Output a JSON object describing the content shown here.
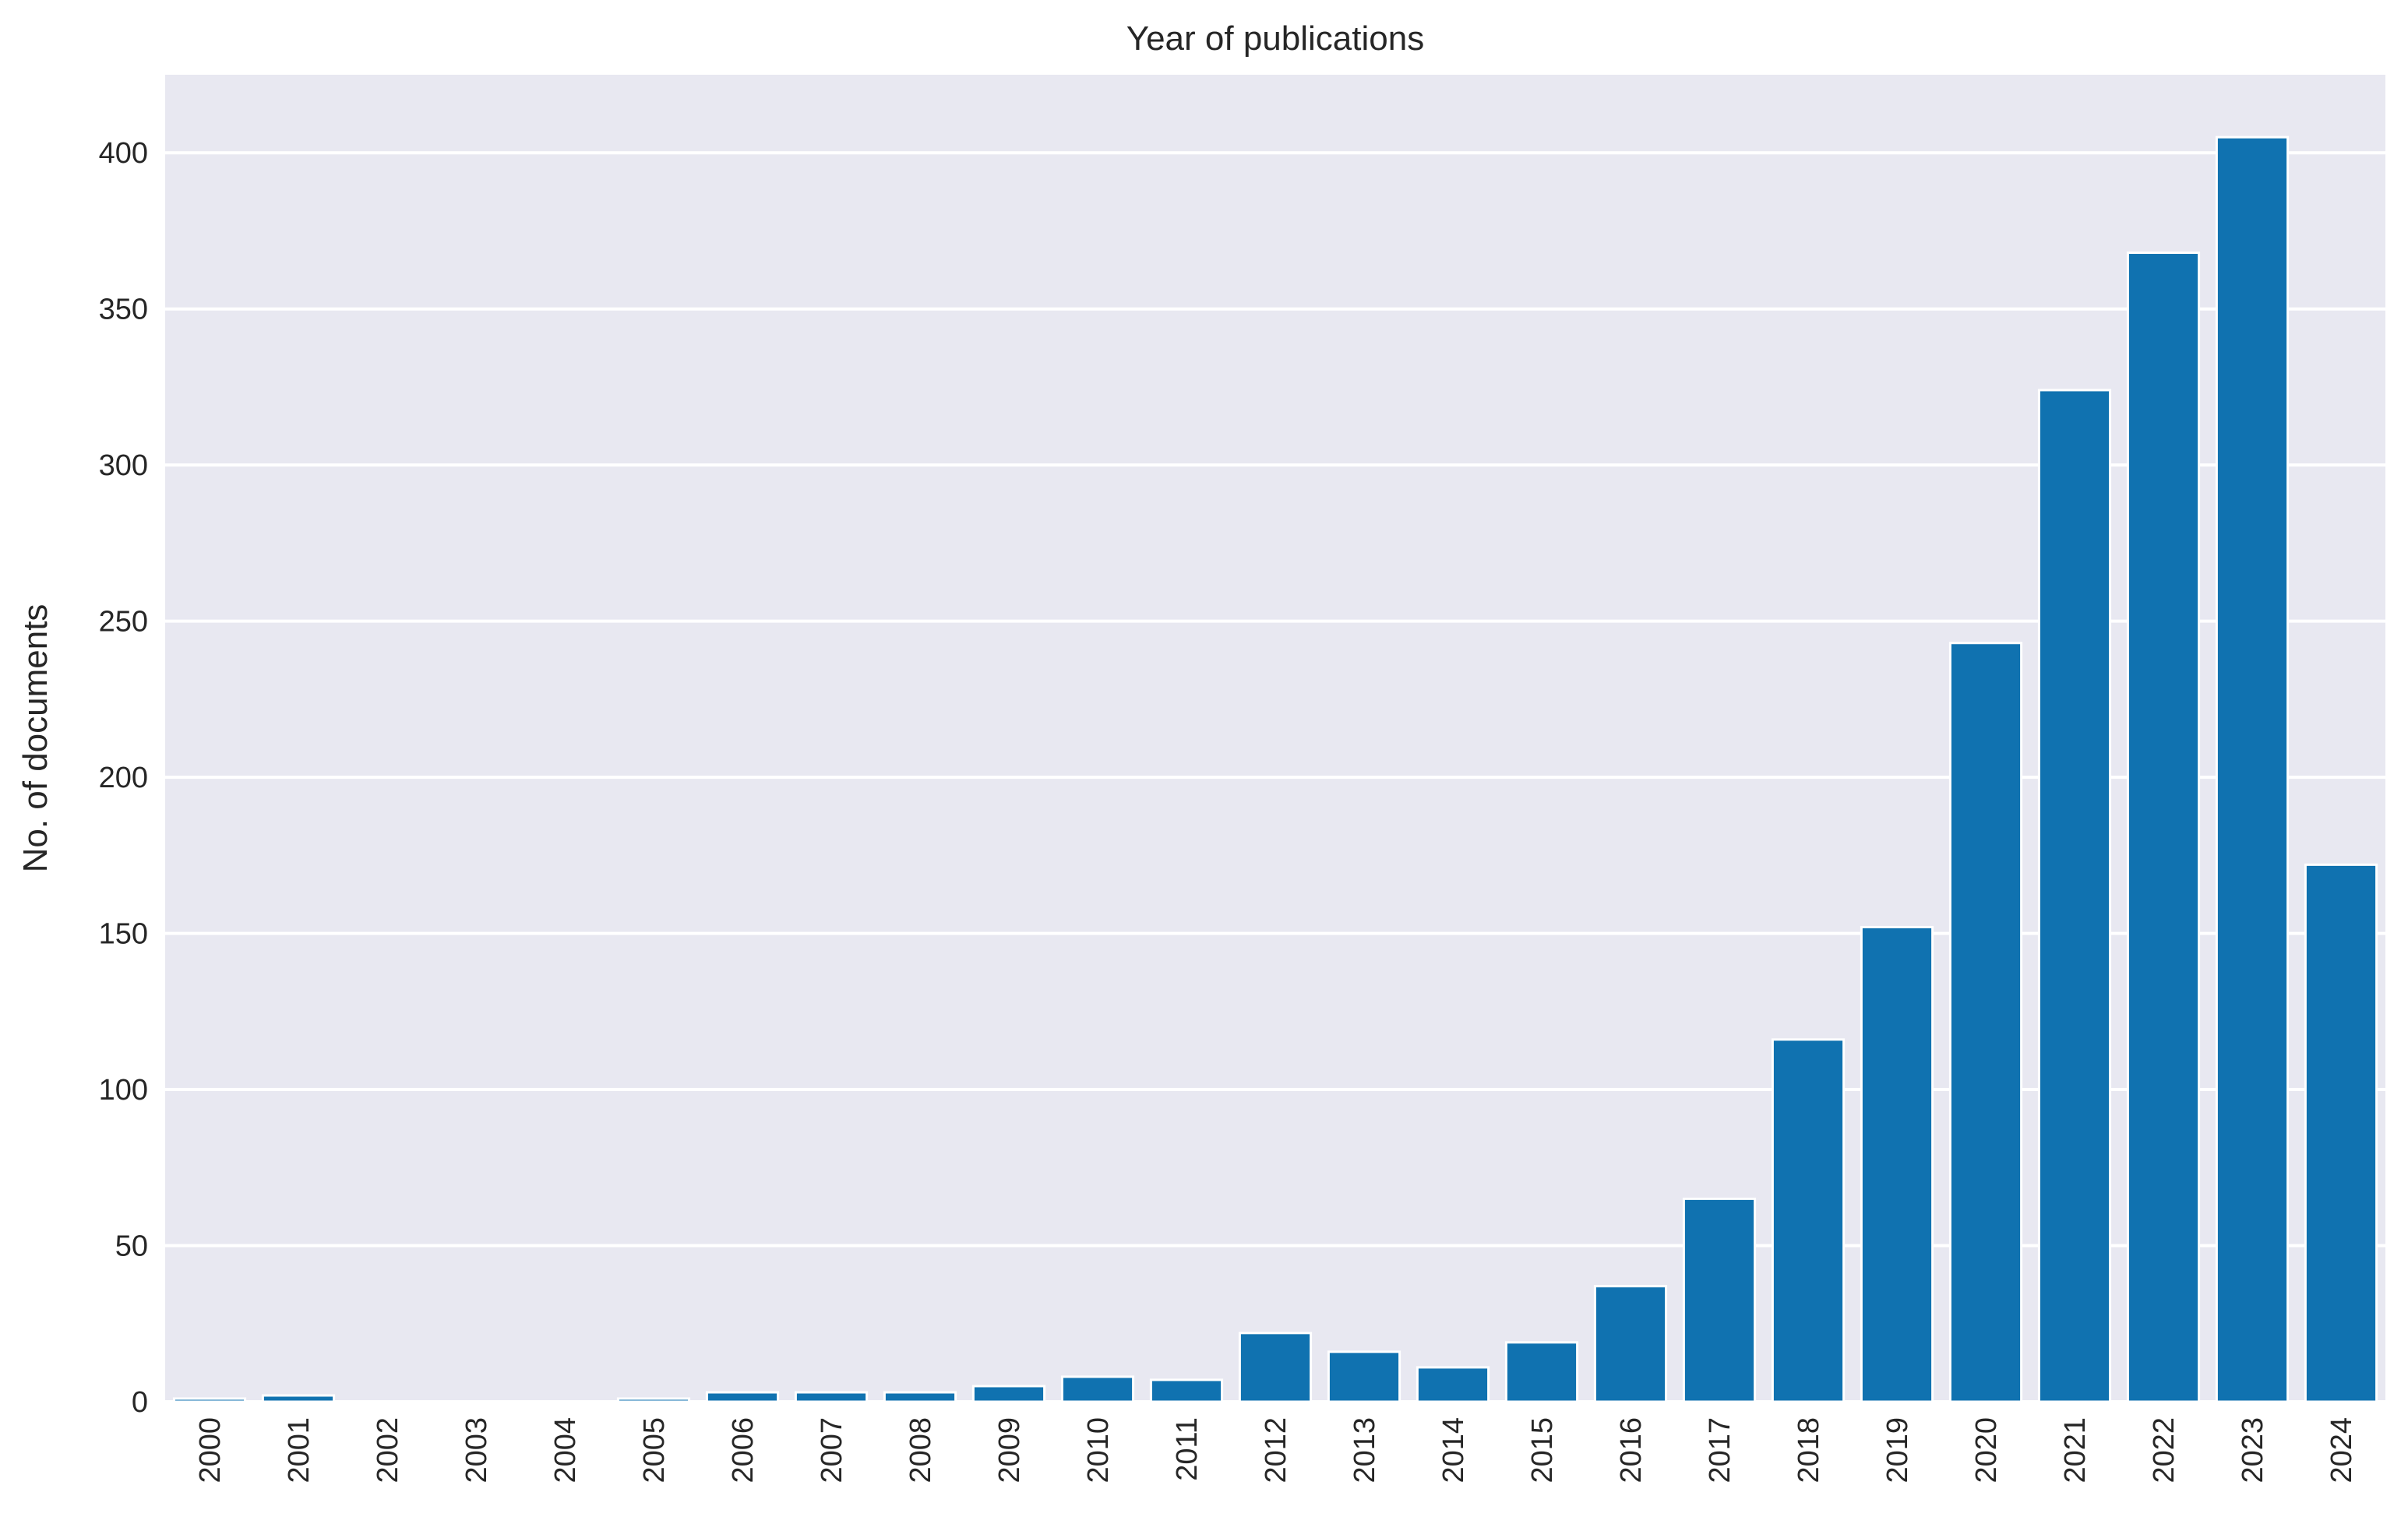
{
  "chart_data": {
    "type": "bar",
    "title": "Year of publications",
    "xlabel": "",
    "ylabel": "No. of documents",
    "ylim": [
      0,
      425
    ],
    "yticks": [
      0,
      50,
      100,
      150,
      200,
      250,
      300,
      350,
      400
    ],
    "grid": true,
    "legend": "none",
    "colors": {
      "bar": "#1072b0",
      "background": "#e8e8f1",
      "grid": "#ffffff",
      "text": "#262626"
    },
    "categories": [
      "2000",
      "2001",
      "2002",
      "2003",
      "2004",
      "2005",
      "2006",
      "2007",
      "2008",
      "2009",
      "2010",
      "2011",
      "2012",
      "2013",
      "2014",
      "2015",
      "2016",
      "2017",
      "2018",
      "2019",
      "2020",
      "2021",
      "2022",
      "2023",
      "2024"
    ],
    "values": [
      1,
      2,
      0,
      0,
      0,
      1,
      3,
      3,
      3,
      5,
      8,
      7,
      22,
      16,
      11,
      19,
      37,
      65,
      116,
      152,
      243,
      324,
      368,
      405,
      172
    ]
  }
}
